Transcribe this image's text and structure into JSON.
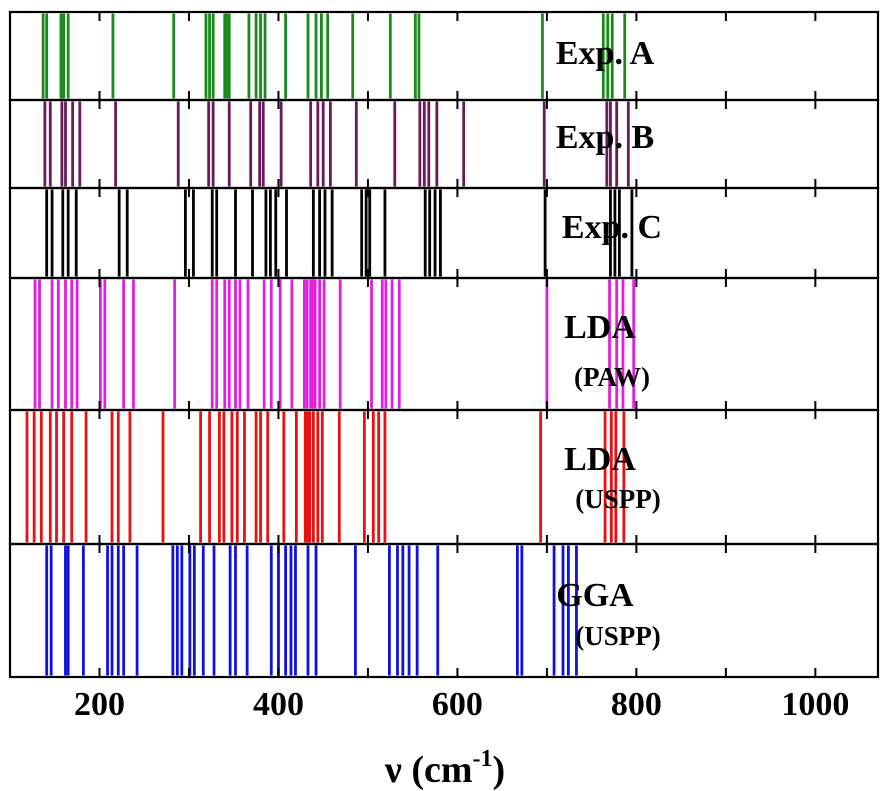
{
  "chart_data": {
    "type": "line-spectrum",
    "xlabel": {
      "main": "ν (cm",
      "sup": "-1",
      "tail": ")"
    },
    "xlim": [
      100,
      1070
    ],
    "xticks": [
      200,
      400,
      600,
      800,
      1000
    ],
    "xtick_labels": [
      "200",
      "400",
      "600",
      "800",
      "1000"
    ],
    "minor_xticks": [
      100,
      300,
      500,
      700,
      900
    ],
    "grid": false,
    "panels": [
      {
        "label_lines": [
          "Exp. A"
        ],
        "color": "#1a8a1a",
        "positions": [
          137,
          141,
          157,
          160,
          165,
          215,
          283,
          319,
          323,
          327,
          340,
          343,
          345,
          367,
          375,
          380,
          385,
          408,
          433,
          442,
          448,
          455,
          483,
          525,
          553,
          557,
          695,
          763,
          768,
          773,
          787
        ]
      },
      {
        "label_lines": [
          "Exp. B"
        ],
        "color": "#6a1a5a",
        "positions": [
          139,
          145,
          158,
          162,
          170,
          178,
          218,
          288,
          322,
          327,
          345,
          369,
          379,
          383,
          403,
          436,
          444,
          450,
          458,
          487,
          530,
          558,
          563,
          568,
          577,
          607,
          697,
          767,
          771,
          778,
          791
        ]
      },
      {
        "label_lines": [
          "Exp. C"
        ],
        "color": "#000000",
        "positions": [
          141,
          147,
          159,
          165,
          174,
          222,
          231,
          296,
          305,
          326,
          331,
          352,
          371,
          386,
          391,
          397,
          409,
          439,
          446,
          452,
          460,
          493,
          498,
          502,
          519,
          564,
          569,
          575,
          581,
          698,
          771,
          776,
          781,
          795
        ]
      },
      {
        "label_lines": [
          "LDA",
          "(PAW)"
        ],
        "color": "#e020e0",
        "positions": [
          128,
          133,
          147,
          154,
          162,
          169,
          175,
          201,
          206,
          227,
          238,
          284,
          326,
          331,
          340,
          345,
          352,
          357,
          366,
          384,
          392,
          402,
          415,
          429,
          432,
          436,
          438,
          441,
          446,
          451,
          469,
          504,
          516,
          520,
          527,
          535,
          700,
          770,
          778,
          785,
          797
        ]
      },
      {
        "label_lines": [
          "LDA",
          "(USPP)"
        ],
        "color": "#e81010",
        "positions": [
          119,
          127,
          135,
          145,
          152,
          160,
          169,
          185,
          214,
          221,
          234,
          271,
          313,
          323,
          334,
          339,
          348,
          354,
          362,
          375,
          380,
          388,
          406,
          420,
          430,
          432,
          435,
          439,
          444,
          449,
          468,
          496,
          506,
          512,
          519,
          693,
          765,
          772,
          777,
          786
        ]
      },
      {
        "label_lines": [
          "GGA",
          "(USPP)"
        ],
        "color": "#1010e0",
        "positions": [
          141,
          146,
          162,
          165,
          182,
          209,
          214,
          221,
          227,
          242,
          282,
          287,
          292,
          301,
          306,
          316,
          328,
          346,
          352,
          365,
          392,
          400,
          408,
          414,
          419,
          433,
          442,
          486,
          524,
          533,
          539,
          546,
          555,
          578,
          667,
          672,
          708,
          718,
          724,
          733
        ]
      }
    ]
  }
}
